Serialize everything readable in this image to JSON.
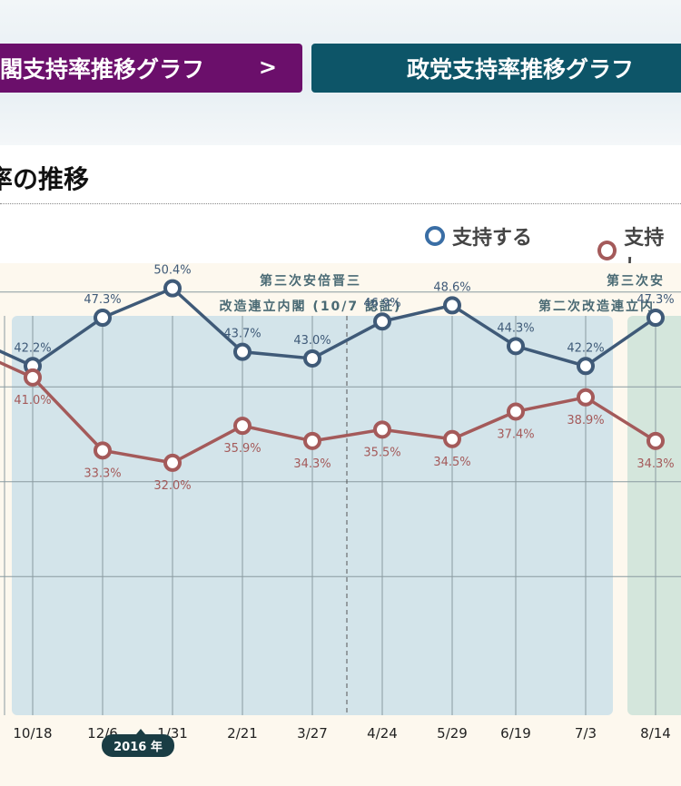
{
  "tabs": {
    "cabinet_label": "閣支持率推移グラフ",
    "cabinet_chevron": ">",
    "party_label": "政党支持率推移グラフ"
  },
  "section_title": "率の推移",
  "legend": {
    "support": "支持する",
    "nonsupport": "支持し"
  },
  "colors": {
    "support": "#3f5a78",
    "support_ring": "#3a6ea5",
    "nonsupport": "#a45a5a",
    "period1_bg": "#d3e4ea",
    "period2_bg": "#d4e6dc",
    "cabinet_tab": "#6b0f6b",
    "party_tab": "#0d5568"
  },
  "chart_data": {
    "type": "line",
    "categories": [
      "10/18",
      "12/6",
      "1/31",
      "2/21",
      "3/27",
      "4/24",
      "5/29",
      "6/19",
      "7/3",
      "8/14"
    ],
    "series": [
      {
        "name": "支持する",
        "values": [
          42.2,
          47.3,
          50.4,
          43.7,
          43.0,
          46.9,
          48.6,
          44.3,
          42.2,
          47.3
        ],
        "labels": [
          "42.2%",
          "47.3%",
          "50.4%",
          "43.7%",
          "43.0%",
          "46.9%",
          "48.6%",
          "44.3%",
          "42.2%",
          "47.3%"
        ]
      },
      {
        "name": "支持し",
        "values": [
          41.0,
          33.3,
          32.0,
          35.9,
          34.3,
          35.5,
          34.5,
          37.4,
          38.9,
          34.3
        ],
        "labels": [
          "41.0%",
          "33.3%",
          "32.0%",
          "35.9%",
          "34.3%",
          "35.5%",
          "34.5%",
          "37.4%",
          "38.9%",
          "34.3%"
        ]
      }
    ],
    "periods": [
      {
        "line1": "第三次安倍晋三",
        "line2": "改造連立内閣 (10/7 認証)"
      },
      {
        "line1": "第三次安",
        "line2": "第二次改造連立内"
      }
    ],
    "year_badge": "2016 年",
    "grid": true
  }
}
